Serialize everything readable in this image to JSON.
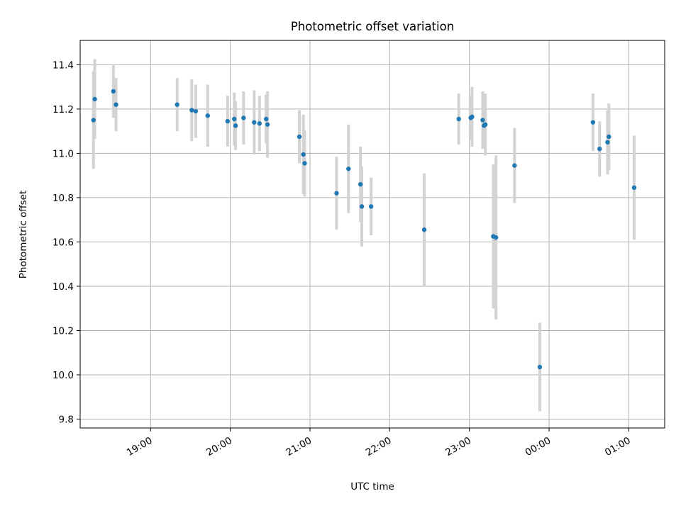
{
  "chart_data": {
    "type": "scatter",
    "title": "Photometric offset variation",
    "xlabel": "UTC time",
    "ylabel": "Photometric offset",
    "x_axis_kind": "time",
    "x_tick_labels": [
      "19:00",
      "20:00",
      "21:00",
      "22:00",
      "23:00",
      "00:00",
      "01:00"
    ],
    "y_ticks": [
      9.8,
      10.0,
      10.2,
      10.4,
      10.6,
      10.8,
      11.0,
      11.2,
      11.4
    ],
    "ylim": [
      9.76,
      11.51
    ],
    "xlim": [
      "18:07",
      "25:27"
    ],
    "grid": true,
    "marker_color": "#1f77b4",
    "errorbar_color": "#d3d3d3",
    "series": [
      {
        "points": [
          {
            "t": "18:17",
            "y": 11.15,
            "err": 0.22
          },
          {
            "t": "18:18",
            "y": 11.245,
            "err": 0.18
          },
          {
            "t": "18:32",
            "y": 11.28,
            "err": 0.12
          },
          {
            "t": "18:34",
            "y": 11.22,
            "err": 0.12
          },
          {
            "t": "19:20",
            "y": 11.22,
            "err": 0.12
          },
          {
            "t": "19:31",
            "y": 11.195,
            "err": 0.14
          },
          {
            "t": "19:34",
            "y": 11.19,
            "err": 0.12
          },
          {
            "t": "19:43",
            "y": 11.17,
            "err": 0.14
          },
          {
            "t": "19:58",
            "y": 11.145,
            "err": 0.115
          },
          {
            "t": "20:03",
            "y": 11.155,
            "err": 0.12
          },
          {
            "t": "20:04",
            "y": 11.125,
            "err": 0.11
          },
          {
            "t": "20:10",
            "y": 11.16,
            "err": 0.12
          },
          {
            "t": "20:18",
            "y": 11.14,
            "err": 0.145
          },
          {
            "t": "20:22",
            "y": 11.135,
            "err": 0.125
          },
          {
            "t": "20:27",
            "y": 11.155,
            "err": 0.11
          },
          {
            "t": "20:28",
            "y": 11.13,
            "err": 0.15
          },
          {
            "t": "20:52",
            "y": 11.075,
            "err": 0.12
          },
          {
            "t": "20:55",
            "y": 10.995,
            "err": 0.18
          },
          {
            "t": "20:56",
            "y": 10.955,
            "err": 0.15
          },
          {
            "t": "21:20",
            "y": 10.82,
            "err": 0.165
          },
          {
            "t": "21:29",
            "y": 10.93,
            "err": 0.2
          },
          {
            "t": "21:38",
            "y": 10.86,
            "err": 0.17
          },
          {
            "t": "21:39",
            "y": 10.76,
            "err": 0.18
          },
          {
            "t": "21:46",
            "y": 10.76,
            "err": 0.13
          },
          {
            "t": "22:26",
            "y": 10.655,
            "err": 0.255
          },
          {
            "t": "22:52",
            "y": 11.155,
            "err": 0.115
          },
          {
            "t": "23:01",
            "y": 11.16,
            "err": 0.1
          },
          {
            "t": "23:02",
            "y": 11.165,
            "err": 0.135
          },
          {
            "t": "23:10",
            "y": 11.15,
            "err": 0.13
          },
          {
            "t": "23:11",
            "y": 11.125,
            "err": 0.1
          },
          {
            "t": "23:12",
            "y": 11.13,
            "err": 0.14
          },
          {
            "t": "23:18",
            "y": 10.625,
            "err": 0.325
          },
          {
            "t": "23:20",
            "y": 10.62,
            "err": 0.37
          },
          {
            "t": "23:34",
            "y": 10.945,
            "err": 0.17
          },
          {
            "t": "23:53",
            "y": 10.035,
            "err": 0.2
          },
          {
            "t": "24:33",
            "y": 11.14,
            "err": 0.13
          },
          {
            "t": "24:38",
            "y": 11.02,
            "err": 0.125
          },
          {
            "t": "24:44",
            "y": 11.05,
            "err": 0.145
          },
          {
            "t": "24:45",
            "y": 11.075,
            "err": 0.15
          },
          {
            "t": "25:04",
            "y": 10.845,
            "err": 0.235
          }
        ]
      }
    ]
  }
}
